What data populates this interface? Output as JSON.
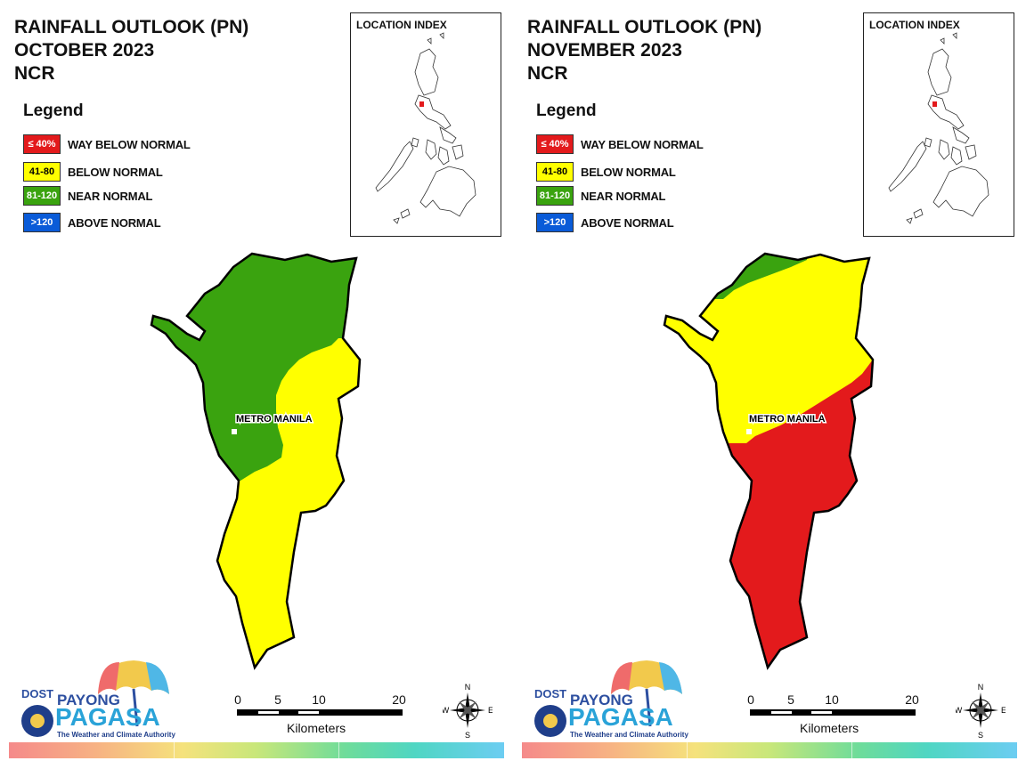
{
  "colors": {
    "way_below": "#e31a1c",
    "below": "#ffff00",
    "near": "#3aa30f",
    "above": "#0a5bd8",
    "outline": "#000000"
  },
  "legend": {
    "title": "Legend",
    "items": [
      {
        "swatch": "≤ 40%",
        "label": "WAY BELOW NORMAL",
        "color": "#e31a1c",
        "text_color": "#ffffff"
      },
      {
        "swatch": "41-80",
        "label": "BELOW NORMAL",
        "color": "#ffff00",
        "text_color": "#000000"
      },
      {
        "swatch": "81-120",
        "label": "NEAR NORMAL",
        "color": "#3aa30f",
        "text_color": "#ffffff"
      },
      {
        "swatch": ">120",
        "label": "ABOVE NORMAL",
        "color": "#0a5bd8",
        "text_color": "#ffffff"
      }
    ]
  },
  "location_index": {
    "title": "LOCATION INDEX"
  },
  "place_label": "METRO MANILA",
  "scale": {
    "ticks": [
      "0",
      "5",
      "10",
      "20"
    ],
    "unit": "Kilometers"
  },
  "compass": {
    "n": "N",
    "s": "S",
    "e": "E",
    "w": "W"
  },
  "logo": {
    "dost": "DOST",
    "payong": "PAYONG",
    "pagasa": "PAGASA",
    "tagline": "The Weather and Climate Authority"
  },
  "panels": [
    {
      "title_lines": [
        "RAINFALL OUTLOOK (PN)",
        "OCTOBER 2023",
        "NCR"
      ],
      "outlook": {
        "north": "81-120",
        "south": "41-80"
      }
    },
    {
      "title_lines": [
        "RAINFALL OUTLOOK (PN)",
        "NOVEMBER 2023",
        "NCR"
      ],
      "outlook": {
        "north_tip": "81-120",
        "middle": "41-80",
        "south": "≤ 40%"
      }
    }
  ]
}
